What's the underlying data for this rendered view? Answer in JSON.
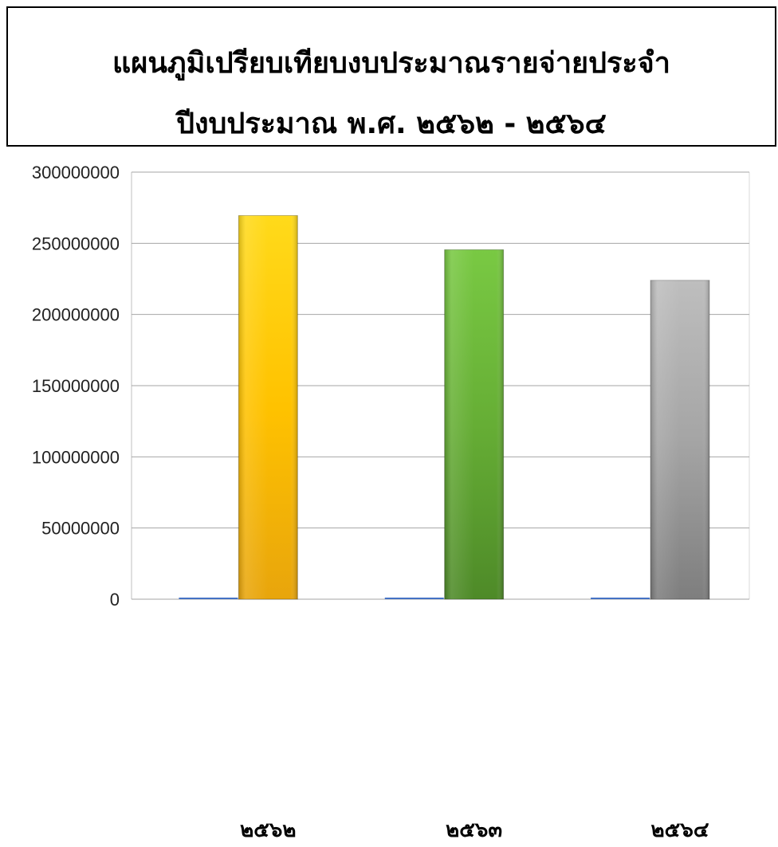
{
  "chart_data": {
    "type": "bar",
    "title_line1": "แผนภูมิเปรียบเทียบงบประมาณรายจ่ายประจำ",
    "title_line2": "ปีงบประมาณ พ.ศ. ๒๕๖๒ - ๒๕๖๔",
    "categories": [
      "๒๕๖๒",
      "๒๕๖๓",
      "๒๕๖๔"
    ],
    "series": [
      {
        "values": [
          0,
          0,
          0
        ],
        "color": "#4472C4"
      },
      {
        "values": [
          269500000,
          245500000,
          224000000
        ],
        "colors": [
          "#FFC000",
          "#70AD47",
          "#A5A5A5"
        ]
      }
    ],
    "ylim": [
      0,
      300000000
    ],
    "yticks": [
      "0",
      "50000000",
      "100000000",
      "150000000",
      "200000000",
      "250000000",
      "300000000"
    ],
    "grid": true
  }
}
